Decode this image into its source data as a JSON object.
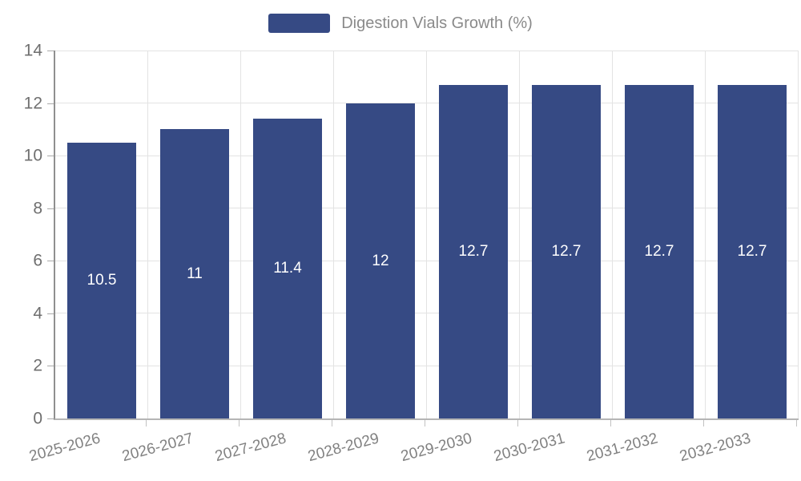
{
  "chart_data": {
    "type": "bar",
    "title": "Digestion Vials Growth (%)",
    "categories": [
      "2025-2026",
      "2026-2027",
      "2027-2028",
      "2028-2029",
      "2029-2030",
      "2030-2031",
      "2031-2032",
      "2032-2033"
    ],
    "values": [
      10.5,
      11,
      11.4,
      12,
      12.7,
      12.7,
      12.7,
      12.7
    ],
    "value_labels": [
      "10.5",
      "11",
      "11.4",
      "12",
      "12.7",
      "12.7",
      "12.7",
      "12.7"
    ],
    "xlabel": "",
    "ylabel": "",
    "ylim": [
      0,
      14
    ],
    "yticks": [
      0,
      2,
      4,
      6,
      8,
      10,
      12,
      14
    ],
    "grid": true,
    "legend_position": "top",
    "bar_color": "#364a84",
    "value_label_color": "#ffffff",
    "axis_text_color": "#6f6f6f",
    "grid_color": "#e3e3e3"
  },
  "legend": {
    "label": "Digestion Vials Growth (%)"
  }
}
